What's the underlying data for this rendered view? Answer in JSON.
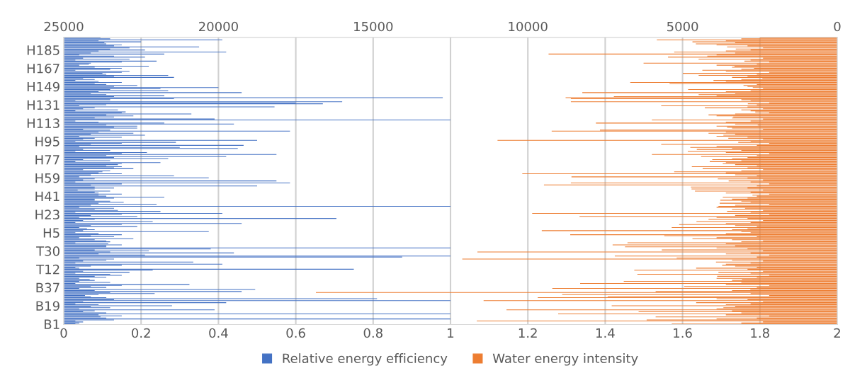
{
  "chart_data": {
    "type": "bar",
    "orientation": "horizontal",
    "categories": [
      null,
      null,
      null,
      null,
      null,
      null,
      null,
      null,
      null,
      null,
      null,
      null,
      "H185",
      null,
      null,
      null,
      null,
      null,
      null,
      null,
      null,
      null,
      null,
      null,
      null,
      null,
      null,
      null,
      null,
      null,
      "H167",
      null,
      null,
      null,
      null,
      null,
      null,
      null,
      null,
      null,
      null,
      null,
      null,
      null,
      null,
      null,
      null,
      null,
      "H149",
      null,
      null,
      null,
      null,
      null,
      null,
      null,
      null,
      null,
      null,
      null,
      null,
      null,
      null,
      null,
      null,
      null,
      "H131",
      null,
      null,
      null,
      null,
      null,
      null,
      null,
      null,
      null,
      null,
      null,
      null,
      null,
      null,
      null,
      null,
      null,
      "H113",
      null,
      null,
      null,
      null,
      null,
      null,
      null,
      null,
      null,
      null,
      null,
      null,
      null,
      null,
      null,
      null,
      null,
      "H95",
      null,
      null,
      null,
      null,
      null,
      null,
      null,
      null,
      null,
      null,
      null,
      null,
      null,
      null,
      null,
      null,
      null,
      "H77",
      null,
      null,
      null,
      null,
      null,
      null,
      null,
      null,
      null,
      null,
      null,
      null,
      null,
      null,
      null,
      null,
      null,
      "H59",
      null,
      null,
      null,
      null,
      null,
      null,
      null,
      null,
      null,
      null,
      null,
      null,
      null,
      null,
      null,
      null,
      null,
      "H41",
      null,
      null,
      null,
      null,
      null,
      null,
      null,
      null,
      null,
      null,
      null,
      null,
      null,
      null,
      null,
      null,
      null,
      "H23",
      null,
      null,
      null,
      null,
      null,
      null,
      null,
      null,
      null,
      null,
      null,
      null,
      null,
      null,
      null,
      null,
      null,
      "H5",
      null,
      null,
      null,
      null,
      null,
      null,
      null,
      null,
      null,
      null,
      null,
      null,
      null,
      null,
      null,
      null,
      null,
      "T30",
      null,
      null,
      null,
      null,
      null,
      null,
      null,
      null,
      null,
      null,
      null,
      null,
      null,
      null,
      null,
      null,
      null,
      "T12",
      null,
      null,
      null,
      null,
      null,
      null,
      null,
      null,
      null,
      null,
      null,
      null,
      null,
      null,
      null,
      null,
      null,
      "B37",
      null,
      null,
      null,
      null,
      null,
      null,
      null,
      null,
      null,
      null,
      null,
      null,
      null,
      null,
      null,
      null,
      null,
      "B19",
      null,
      null,
      null,
      null,
      null,
      null,
      null,
      null,
      null,
      null,
      null,
      null,
      null,
      null,
      null,
      null,
      null,
      "B1"
    ],
    "series": [
      {
        "name": "Relative energy efficiency",
        "color": "#4472c4",
        "values": [
          0.095,
          0.12,
          0.41,
          0.09,
          0.2,
          0.105,
          0.11,
          0.15,
          0.13,
          0.35,
          0.17,
          0.12,
          0.21,
          0.09,
          0.42,
          0.07,
          0.26,
          0.04,
          0.13,
          0.21,
          0.05,
          0.17,
          0.03,
          0.24,
          0.15,
          0.07,
          0.065,
          0.04,
          0.22,
          0.08,
          0.15,
          0.12,
          0.03,
          0.17,
          0.15,
          0.1,
          0.11,
          0.27,
          0.13,
          0.285,
          0.05,
          0.08,
          0.03,
          0.09,
          0.15,
          0.08,
          0.11,
          0.19,
          0.13,
          0.4,
          0.25,
          0.12,
          0.27,
          0.09,
          0.46,
          0.07,
          0.11,
          0.26,
          0.13,
          0.98,
          0.285,
          0.12,
          0.03,
          0.72,
          0.6,
          0.67,
          0.11,
          0.04,
          0.545,
          0.08,
          0.05,
          0.14,
          0.03,
          0.16,
          0.15,
          0.33,
          0.11,
          0.18,
          0.13,
          0.08,
          0.39,
          1.0,
          0.03,
          0.09,
          0.26,
          0.44,
          0.11,
          0.19,
          0.13,
          0.19,
          0.05,
          0.12,
          0.585,
          0.09,
          0.18,
          0.07,
          0.21,
          0.04,
          0.15,
          0.08,
          0.05,
          0.5,
          0.03,
          0.29,
          0.15,
          0.07,
          0.465,
          0.04,
          0.3,
          0.45,
          0.05,
          0.12,
          0.03,
          0.215,
          0.15,
          0.55,
          0.11,
          0.42,
          0.13,
          0.27,
          0.05,
          0.12,
          0.03,
          0.25,
          0.15,
          0.14,
          0.11,
          0.15,
          0.13,
          0.18,
          0.05,
          0.12,
          0.1,
          0.09,
          0.15,
          0.07,
          0.285,
          0.04,
          0.375,
          0.08,
          0.05,
          0.55,
          0.03,
          0.585,
          0.15,
          0.07,
          0.5,
          0.08,
          0.13,
          0.08,
          0.036,
          0.12,
          0.08,
          0.09,
          0.15,
          0.09,
          0.11,
          0.26,
          0.13,
          0.08,
          0.08,
          0.12,
          0.155,
          0.09,
          0.24,
          0.07,
          1.0,
          0.04,
          0.13,
          0.08,
          0.14,
          0.25,
          0.03,
          0.41,
          0.15,
          0.07,
          0.19,
          0.04,
          0.705,
          0.08,
          0.05,
          0.23,
          0.03,
          0.46,
          0.15,
          0.07,
          0.19,
          0.04,
          0.06,
          0.08,
          0.05,
          0.375,
          0.03,
          0.09,
          0.15,
          0.07,
          0.13,
          0.04,
          0.18,
          0.08,
          0.11,
          0.12,
          0.03,
          0.115,
          0.15,
          0.11,
          0.11,
          1.0,
          0.38,
          0.08,
          0.22,
          0.12,
          0.44,
          0.09,
          0.21,
          1.0,
          0.875,
          0.04,
          0.13,
          0.11,
          0.05,
          0.335,
          0.03,
          0.41,
          0.15,
          0.07,
          0.03,
          0.04,
          0.75,
          0.23,
          0.05,
          0.17,
          0.03,
          0.12,
          0.15,
          0.08,
          0.11,
          0.04,
          0.067,
          0.08,
          0.04,
          0.12,
          0.03,
          0.325,
          0.15,
          0.07,
          0.11,
          0.04,
          0.495,
          0.08,
          0.46,
          0.12,
          0.235,
          0.09,
          0.055,
          0.07,
          0.11,
          0.81,
          0.13,
          1.0,
          0.05,
          0.42,
          0.03,
          0.09,
          0.28,
          0.07,
          0.12,
          0.04,
          0.39,
          0.08,
          0.05,
          0.11,
          1.0,
          0.09,
          0.15,
          0.095,
          0.11,
          1.0,
          0.13,
          0.03,
          0.05,
          0.04,
          0.03
        ]
      },
      {
        "name": "Water energy intensity",
        "color": "#ed7d31",
        "axis": "x2",
        "values": [
          2500,
          3100,
          5830,
          3600,
          4680,
          3300,
          4570,
          3900,
          2900,
          3560,
          2400,
          3280,
          2800,
          3600,
          5270,
          3300,
          9330,
          3900,
          4200,
          5470,
          2400,
          4480,
          2800,
          3000,
          2200,
          6260,
          2600,
          3900,
          3320,
          3400,
          2690,
          3100,
          4360,
          3600,
          2200,
          4990,
          2600,
          4480,
          2900,
          3400,
          2420,
          3100,
          4000,
          3600,
          6690,
          5420,
          2600,
          3030,
          2900,
          2730,
          2400,
          4820,
          2800,
          3600,
          8240,
          3300,
          4480,
          3900,
          7220,
          8780,
          8610,
          3100,
          2800,
          8610,
          2200,
          2890,
          2600,
          5690,
          2900,
          4280,
          2400,
          3100,
          2800,
          2650,
          2200,
          3300,
          4160,
          3900,
          3360,
          3400,
          2400,
          5990,
          2800,
          3600,
          7800,
          3300,
          2570,
          3900,
          3560,
          3400,
          2400,
          7670,
          9230,
          3600,
          4160,
          3300,
          3680,
          3900,
          2900,
          3520,
          2400,
          10980,
          2800,
          3200,
          2200,
          5690,
          2600,
          3900,
          4750,
          3400,
          4540,
          3100,
          4830,
          3600,
          2200,
          5990,
          2600,
          4400,
          2900,
          3400,
          4040,
          3100,
          4120,
          3600,
          3700,
          3300,
          2600,
          4700,
          2900,
          4350,
          2400,
          3100,
          5270,
          3600,
          10180,
          3300,
          2600,
          8590,
          2900,
          3860,
          2400,
          3510,
          2800,
          8610,
          2200,
          9480,
          2600,
          4730,
          2900,
          4710,
          2400,
          4600,
          2800,
          3600,
          2200,
          2740,
          2600,
          3700,
          2900,
          3400,
          3780,
          3100,
          2800,
          3800,
          2200,
          3300,
          3840,
          3900,
          2980,
          3400,
          2400,
          3560,
          2800,
          9860,
          2200,
          3300,
          8330,
          3900,
          2900,
          4160,
          2400,
          4550,
          2800,
          3600,
          5110,
          3300,
          2600,
          5350,
          2900,
          3400,
          9550,
          3100,
          2800,
          3600,
          8630,
          5590,
          2600,
          3900,
          4680,
          3400,
          2400,
          3100,
          6780,
          3600,
          7260,
          3300,
          6860,
          3900,
          2900,
          5670,
          2400,
          11630,
          2800,
          3600,
          2200,
          7190,
          2600,
          5190,
          12120,
          3400,
          2400,
          3920,
          2800,
          3600,
          3720,
          3300,
          2600,
          4560,
          2900,
          6560,
          2400,
          3840,
          2800,
          6460,
          2200,
          3880,
          2600,
          3900,
          3080,
          3400,
          6900,
          3100,
          8310,
          3600,
          2200,
          4950,
          2600,
          9210,
          2810,
          3400,
          5870,
          16850,
          2800,
          8890,
          2200,
          7420,
          9680,
          3900,
          2900,
          11430,
          2400,
          4560,
          2800,
          3600,
          7290,
          3300,
          3680,
          3900,
          10690,
          3400,
          6420,
          3100,
          9020,
          3600,
          2200,
          5870,
          2600,
          3900,
          6160,
          11650,
          2400,
          3100,
          5350
        ]
      }
    ],
    "xlim": [
      0,
      2
    ],
    "xticks": [
      0,
      0.2,
      0.4,
      0.6,
      0.8,
      1,
      1.2,
      1.4,
      1.6,
      1.8,
      2
    ],
    "x2lim": [
      25000,
      0
    ],
    "x2ticks": [
      25000,
      20000,
      15000,
      10000,
      5000,
      0
    ],
    "grid": "x",
    "legend": "bottom"
  }
}
